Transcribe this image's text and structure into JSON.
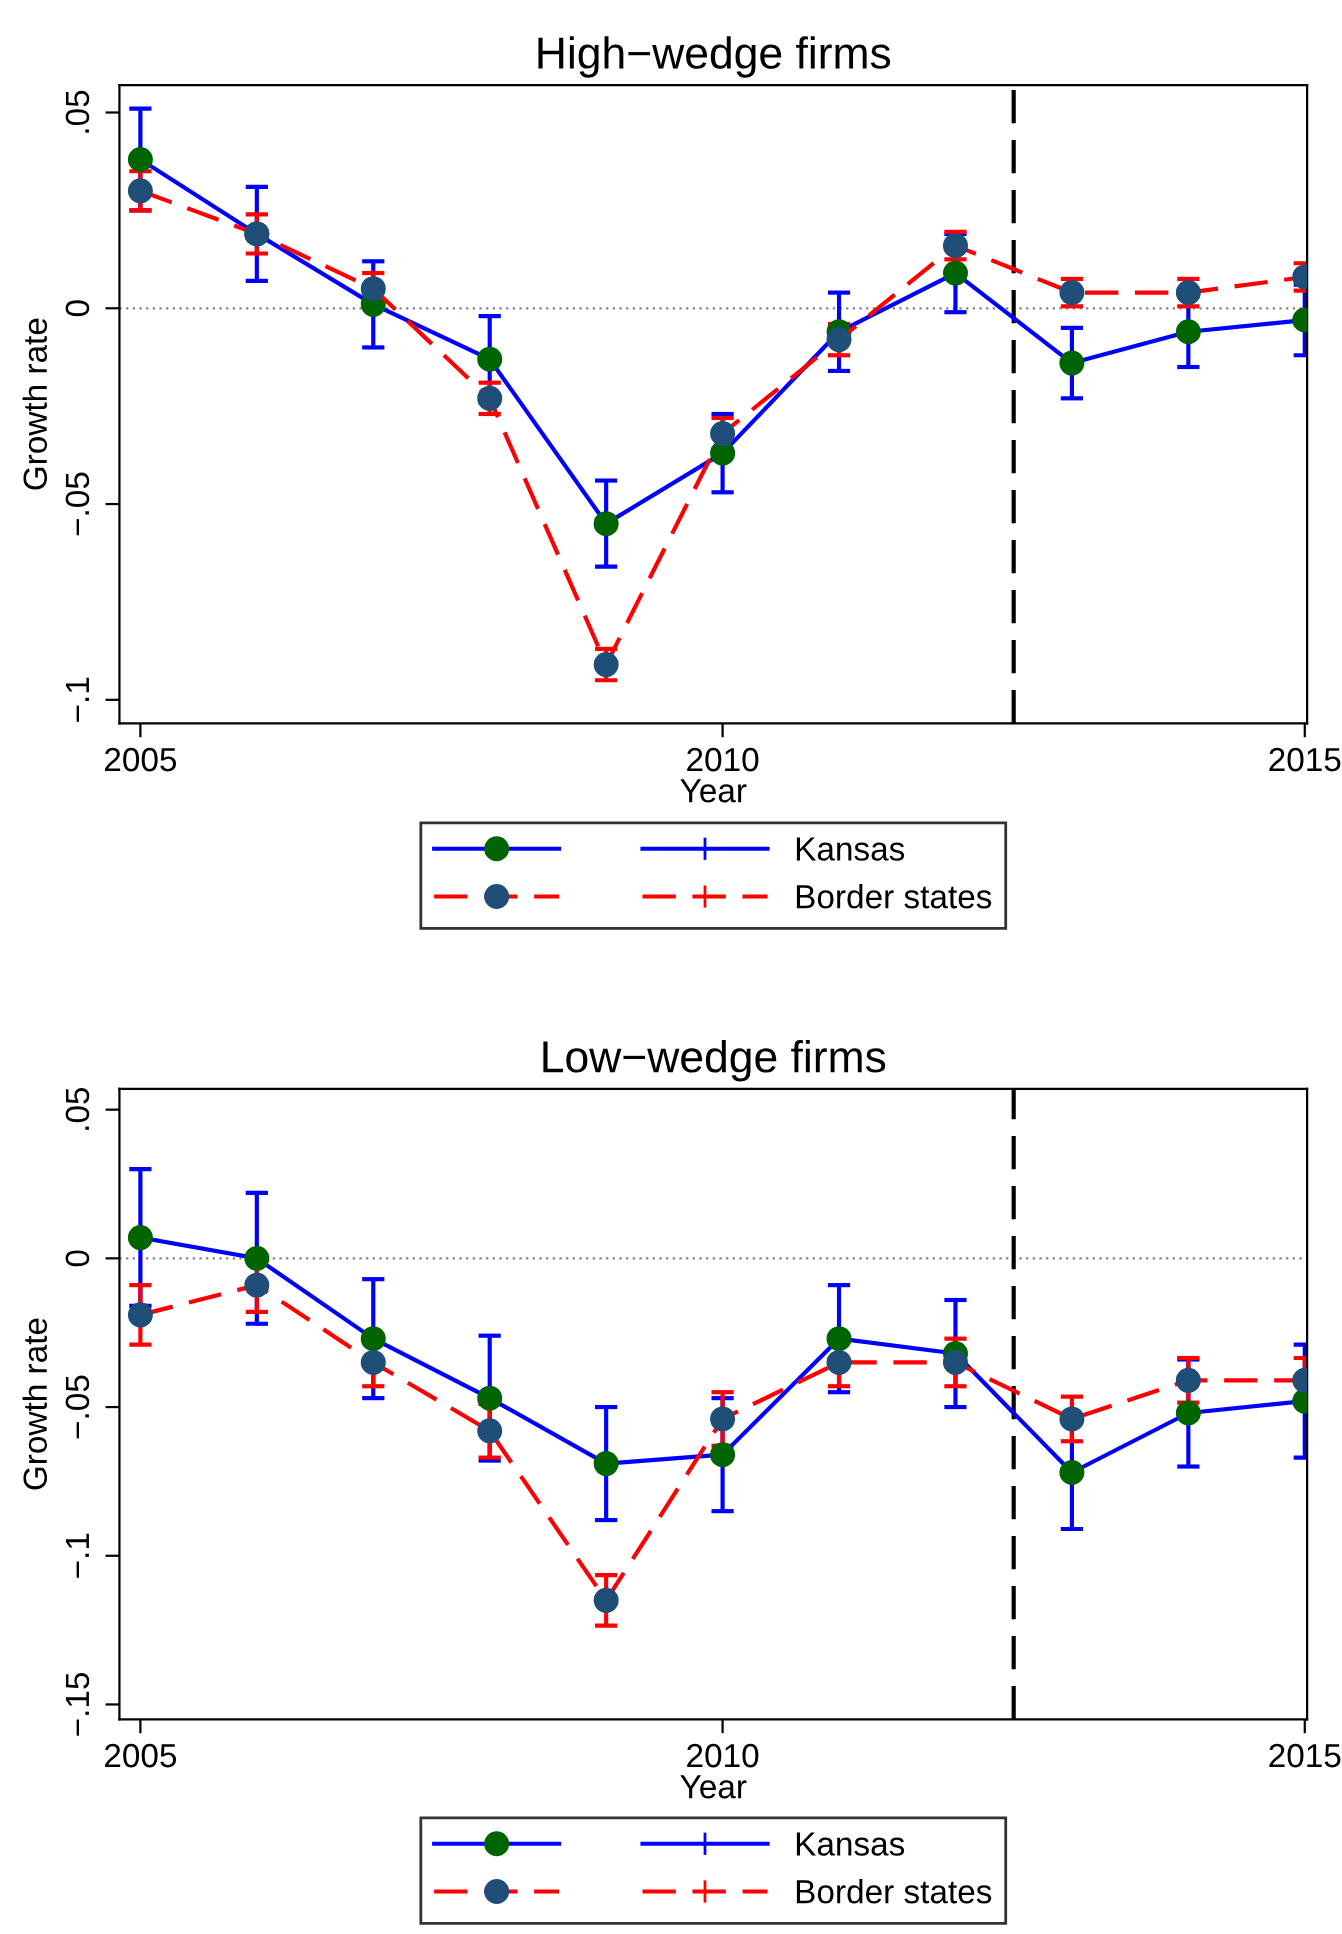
{
  "chart_data": [
    {
      "type": "line",
      "title": "High−wedge firms",
      "xlabel": "Year",
      "ylabel": "Growth rate",
      "x": [
        2005,
        2006,
        2007,
        2008,
        2009,
        2010,
        2011,
        2012,
        2013,
        2014,
        2015
      ],
      "series": [
        {
          "name": "Kansas",
          "color": "#0000ff",
          "line_style": "solid",
          "values": [
            0.038,
            0.019,
            0.001,
            -0.013,
            -0.055,
            -0.037,
            -0.006,
            0.009,
            -0.014,
            -0.006,
            -0.003
          ],
          "errors": [
            0.013,
            0.012,
            0.011,
            0.011,
            0.011,
            0.01,
            0.01,
            0.01,
            0.009,
            0.009,
            0.009
          ]
        },
        {
          "name": "Border states",
          "color": "#ff0000",
          "line_style": "dashed",
          "values": [
            0.03,
            0.019,
            0.005,
            -0.023,
            -0.091,
            -0.032,
            -0.008,
            0.016,
            0.004,
            0.004,
            0.008
          ],
          "errors": [
            0.005,
            0.005,
            0.004,
            0.004,
            0.004,
            0.004,
            0.004,
            0.0035,
            0.0035,
            0.0035,
            0.0035
          ]
        }
      ],
      "xlim": [
        2004.82,
        2015.02
      ],
      "xticks": [
        2005,
        2010,
        2015
      ],
      "ylim": [
        -0.106,
        0.057
      ],
      "yticks": [
        {
          "value": -0.1,
          "label": "−.1"
        },
        {
          "value": -0.05,
          "label": "−.05"
        },
        {
          "value": 0,
          "label": "0"
        },
        {
          "value": 0.05,
          "label": ".05"
        }
      ],
      "ref_lines": [
        {
          "axis": "y",
          "value": 0,
          "label": null,
          "color": "#808080",
          "line_style": "dotted"
        },
        {
          "axis": "x",
          "value": 2012.5,
          "label": null,
          "color": "#000000",
          "line_style": "dashed"
        }
      ],
      "marker": "circle",
      "grid": false,
      "legend": "bottom"
    },
    {
      "type": "line",
      "title": "Low−wedge firms",
      "xlabel": "Year",
      "ylabel": "Growth rate",
      "x": [
        2005,
        2006,
        2007,
        2008,
        2009,
        2010,
        2011,
        2012,
        2013,
        2014,
        2015
      ],
      "series": [
        {
          "name": "Kansas",
          "color": "#0000ff",
          "line_style": "solid",
          "values": [
            0.007,
            0.0,
            -0.027,
            -0.047,
            -0.069,
            -0.066,
            -0.027,
            -0.032,
            -0.072,
            -0.052,
            -0.048
          ],
          "errors": [
            0.023,
            0.022,
            0.02,
            0.021,
            0.019,
            0.019,
            0.018,
            0.018,
            0.019,
            0.018,
            0.019
          ]
        },
        {
          "name": "Border states",
          "color": "#ff0000",
          "line_style": "dashed",
          "values": [
            -0.019,
            -0.009,
            -0.035,
            -0.058,
            -0.115,
            -0.054,
            -0.035,
            -0.035,
            -0.054,
            -0.041,
            -0.041
          ],
          "errors": [
            0.01,
            0.009,
            0.008,
            0.009,
            0.0085,
            0.009,
            0.008,
            0.008,
            0.0075,
            0.0075,
            0.0075
          ]
        }
      ],
      "xlim": [
        2004.82,
        2015.02
      ],
      "xticks": [
        2005,
        2010,
        2015
      ],
      "ylim": [
        -0.155,
        0.057
      ],
      "yticks": [
        {
          "value": -0.15,
          "label": "−.15"
        },
        {
          "value": -0.1,
          "label": "−.1"
        },
        {
          "value": -0.05,
          "label": "−.05"
        },
        {
          "value": 0,
          "label": "0"
        },
        {
          "value": 0.05,
          "label": ".05"
        }
      ],
      "ref_lines": [
        {
          "axis": "y",
          "value": 0,
          "label": null,
          "color": "#808080",
          "line_style": "dotted"
        },
        {
          "axis": "x",
          "value": 2012.5,
          "label": null,
          "color": "#000000",
          "line_style": "dashed"
        }
      ],
      "marker": "circle",
      "grid": false,
      "legend": "bottom"
    }
  ]
}
